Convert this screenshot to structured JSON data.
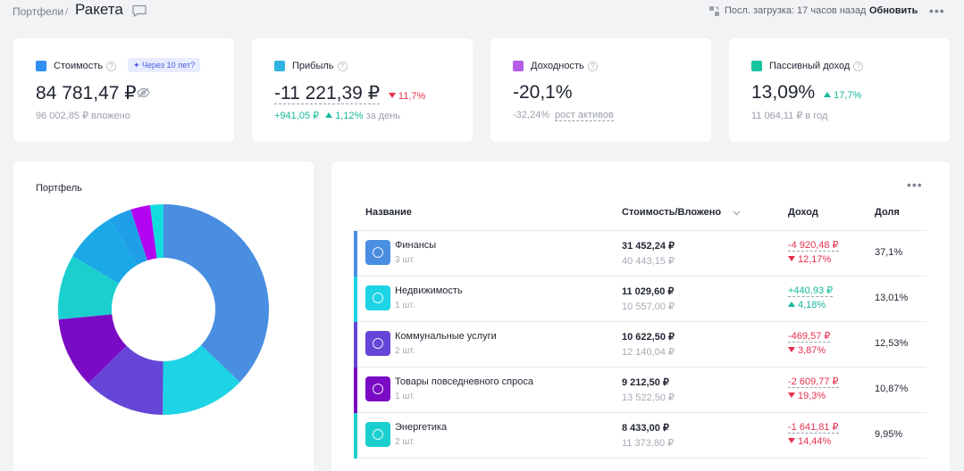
{
  "header": {
    "breadcrumb": "Портфели",
    "separator": "/",
    "title": "Ракета",
    "last_load": "Посл. загрузка: 17 часов назад",
    "refresh": "Обновить",
    "more": "•••"
  },
  "stats": [
    {
      "label": "Стоимость",
      "icon_color": "#2f8ef2",
      "value": "84 781,47 ₽",
      "badge": "✦ Через 10 лет?",
      "sub": "96 002,85 ₽ вложено"
    },
    {
      "label": "Прибыль",
      "icon_color": "#2fb3e0",
      "value": "-11 221,39 ₽",
      "change": "11,7%",
      "sub_value": "+941,05 ₽",
      "sub_change": "1,12%",
      "sub_suffix": "за день"
    },
    {
      "label": "Доходность",
      "icon_color": "#b45ee8",
      "value": "-20,1%",
      "sub_value": "-32,24%",
      "sub_link": "рост активов"
    },
    {
      "label": "Пассивный доход",
      "icon_color": "#17c4a0",
      "value": "13,09%",
      "change": "17,7%",
      "sub": "11 064,11 ₽ в год"
    }
  ],
  "portfolio": {
    "title": "Портфель"
  },
  "chart_data": {
    "type": "pie",
    "donut": true,
    "categories": [
      "Финансы",
      "Недвижимость",
      "Коммунальные услуги",
      "Товары повседневного спроса",
      "Энергетика",
      "",
      "",
      "",
      ""
    ],
    "values": [
      37.1,
      13.01,
      12.53,
      10.87,
      9.95,
      8.0,
      3.5,
      3.0,
      2.04
    ],
    "colors": [
      "#4a8ee2",
      "#1cd4e4",
      "#6546d6",
      "#7a0bc4",
      "#1ccfcf",
      "#1aa8e6",
      "#1e9fe8",
      "#b304f2",
      "#13dcdc"
    ]
  },
  "table": {
    "more": "•••",
    "columns": [
      "Название",
      "Стоимость/Вложено",
      "Доход",
      "Доля"
    ],
    "rows": [
      {
        "color": "#4a8ee2",
        "name": "Финансы",
        "qty": "3 шт.",
        "value": "31 452,24 ₽",
        "invested": "40 443,15 ₽",
        "income": "-4 920,48 ₽",
        "income_pct": "12,17%",
        "positive": false,
        "share": "37,1%"
      },
      {
        "color": "#1cd4e4",
        "name": "Недвижимость",
        "qty": "1 шт.",
        "value": "11 029,60 ₽",
        "invested": "10 557,00 ₽",
        "income": "+440,93 ₽",
        "income_pct": "4,18%",
        "positive": true,
        "share": "13,01%"
      },
      {
        "color": "#6546d6",
        "name": "Коммунальные услуги",
        "qty": "2 шт.",
        "value": "10 622,50 ₽",
        "invested": "12 140,04 ₽",
        "income": "-469,57 ₽",
        "income_pct": "3,87%",
        "positive": false,
        "share": "12,53%"
      },
      {
        "color": "#7a0bc4",
        "name": "Товары повседневного спроса",
        "qty": "1 шт.",
        "value": "9 212,50 ₽",
        "invested": "13 522,50 ₽",
        "income": "-2 609,77 ₽",
        "income_pct": "19,3%",
        "positive": false,
        "share": "10,87%"
      },
      {
        "color": "#1ccfcf",
        "name": "Энергетика",
        "qty": "2 шт.",
        "value": "8 433,00 ₽",
        "invested": "11 373,80 ₽",
        "income": "-1 641,81 ₽",
        "income_pct": "14,44%",
        "positive": false,
        "share": "9,95%"
      }
    ]
  }
}
